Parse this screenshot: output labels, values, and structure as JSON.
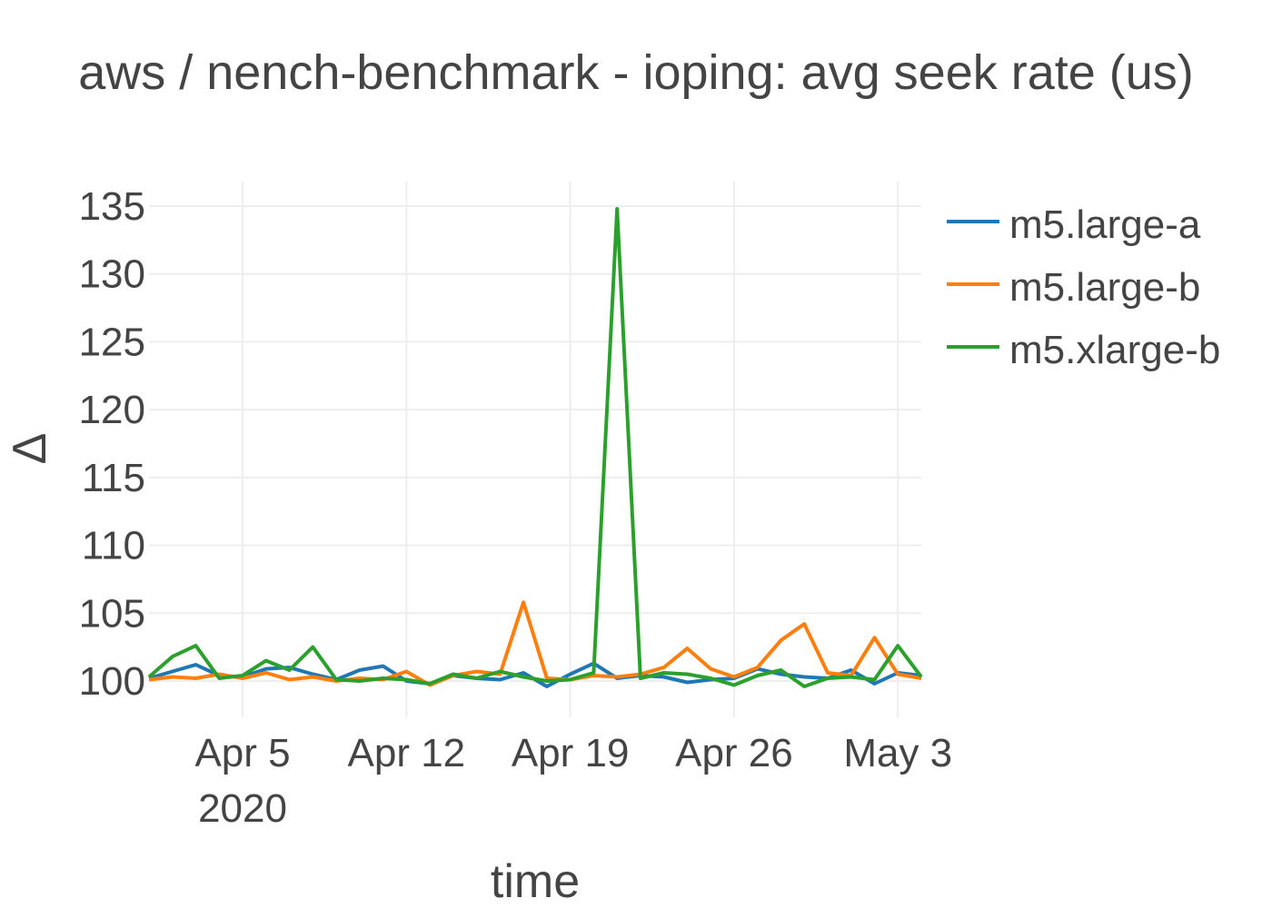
{
  "chart_data": {
    "type": "line",
    "title": "aws / nench-benchmark - ioping: avg seek rate (us)",
    "xlabel": "time",
    "ylabel": "Δ",
    "x_range": [
      "2020-04-01",
      "2020-05-04"
    ],
    "ylim": [
      97.5,
      137
    ],
    "y_ticks": [
      100,
      105,
      110,
      115,
      120,
      125,
      130,
      135
    ],
    "x_ticks": [
      {
        "date": "2020-04-05",
        "label": "Apr 5",
        "sublabel": "2020"
      },
      {
        "date": "2020-04-12",
        "label": "Apr 12",
        "sublabel": ""
      },
      {
        "date": "2020-04-19",
        "label": "Apr 19",
        "sublabel": ""
      },
      {
        "date": "2020-04-26",
        "label": "Apr 26",
        "sublabel": ""
      },
      {
        "date": "2020-05-03",
        "label": "May 3",
        "sublabel": ""
      }
    ],
    "grid": true,
    "legend_position": "top-right",
    "series": [
      {
        "name": "m5.large-a",
        "color": "#1f77b4",
        "points": [
          [
            "2020-04-01",
            100.2
          ],
          [
            "2020-04-02",
            100.7
          ],
          [
            "2020-04-03",
            101.2
          ],
          [
            "2020-04-04",
            100.4
          ],
          [
            "2020-04-05",
            100.3
          ],
          [
            "2020-04-06",
            100.9
          ],
          [
            "2020-04-07",
            101.0
          ],
          [
            "2020-04-08",
            100.5
          ],
          [
            "2020-04-09",
            100.1
          ],
          [
            "2020-04-10",
            100.8
          ],
          [
            "2020-04-11",
            101.1
          ],
          [
            "2020-04-12",
            100.0
          ],
          [
            "2020-04-13",
            99.8
          ],
          [
            "2020-04-14",
            100.4
          ],
          [
            "2020-04-15",
            100.2
          ],
          [
            "2020-04-16",
            100.1
          ],
          [
            "2020-04-17",
            100.6
          ],
          [
            "2020-04-18",
            99.6
          ],
          [
            "2020-04-19",
            100.5
          ],
          [
            "2020-04-20",
            101.3
          ],
          [
            "2020-04-21",
            100.2
          ],
          [
            "2020-04-22",
            100.4
          ],
          [
            "2020-04-23",
            100.3
          ],
          [
            "2020-04-24",
            99.9
          ],
          [
            "2020-04-25",
            100.1
          ],
          [
            "2020-04-26",
            100.2
          ],
          [
            "2020-04-27",
            100.9
          ],
          [
            "2020-04-28",
            100.5
          ],
          [
            "2020-04-29",
            100.3
          ],
          [
            "2020-04-30",
            100.2
          ],
          [
            "2020-05-01",
            100.8
          ],
          [
            "2020-05-02",
            99.8
          ],
          [
            "2020-05-03",
            100.6
          ],
          [
            "2020-05-04",
            100.4
          ]
        ]
      },
      {
        "name": "m5.large-b",
        "color": "#ff7f0e",
        "points": [
          [
            "2020-04-01",
            100.1
          ],
          [
            "2020-04-02",
            100.3
          ],
          [
            "2020-04-03",
            100.2
          ],
          [
            "2020-04-04",
            100.5
          ],
          [
            "2020-04-05",
            100.2
          ],
          [
            "2020-04-06",
            100.6
          ],
          [
            "2020-04-07",
            100.1
          ],
          [
            "2020-04-08",
            100.3
          ],
          [
            "2020-04-09",
            100.0
          ],
          [
            "2020-04-10",
            100.2
          ],
          [
            "2020-04-11",
            100.1
          ],
          [
            "2020-04-12",
            100.7
          ],
          [
            "2020-04-13",
            99.7
          ],
          [
            "2020-04-14",
            100.4
          ],
          [
            "2020-04-15",
            100.7
          ],
          [
            "2020-04-16",
            100.5
          ],
          [
            "2020-04-17",
            105.8
          ],
          [
            "2020-04-18",
            100.2
          ],
          [
            "2020-04-19",
            100.1
          ],
          [
            "2020-04-20",
            100.4
          ],
          [
            "2020-04-21",
            100.3
          ],
          [
            "2020-04-22",
            100.5
          ],
          [
            "2020-04-23",
            101.0
          ],
          [
            "2020-04-24",
            102.4
          ],
          [
            "2020-04-25",
            100.9
          ],
          [
            "2020-04-26",
            100.3
          ],
          [
            "2020-04-27",
            101.0
          ],
          [
            "2020-04-28",
            103.0
          ],
          [
            "2020-04-29",
            104.2
          ],
          [
            "2020-04-30",
            100.6
          ],
          [
            "2020-05-01",
            100.4
          ],
          [
            "2020-05-02",
            103.2
          ],
          [
            "2020-05-03",
            100.5
          ],
          [
            "2020-05-04",
            100.2
          ]
        ]
      },
      {
        "name": "m5.xlarge-b",
        "color": "#2ca02c",
        "points": [
          [
            "2020-04-01",
            100.3
          ],
          [
            "2020-04-02",
            101.8
          ],
          [
            "2020-04-03",
            102.6
          ],
          [
            "2020-04-04",
            100.2
          ],
          [
            "2020-04-05",
            100.4
          ],
          [
            "2020-04-06",
            101.5
          ],
          [
            "2020-04-07",
            100.8
          ],
          [
            "2020-04-08",
            102.5
          ],
          [
            "2020-04-09",
            100.1
          ],
          [
            "2020-04-10",
            100.0
          ],
          [
            "2020-04-11",
            100.2
          ],
          [
            "2020-04-12",
            100.1
          ],
          [
            "2020-04-13",
            99.8
          ],
          [
            "2020-04-14",
            100.5
          ],
          [
            "2020-04-15",
            100.2
          ],
          [
            "2020-04-16",
            100.7
          ],
          [
            "2020-04-17",
            100.3
          ],
          [
            "2020-04-18",
            100.0
          ],
          [
            "2020-04-19",
            100.1
          ],
          [
            "2020-04-20",
            100.6
          ],
          [
            "2020-04-21",
            134.8
          ],
          [
            "2020-04-22",
            100.2
          ],
          [
            "2020-04-23",
            100.6
          ],
          [
            "2020-04-24",
            100.5
          ],
          [
            "2020-04-25",
            100.2
          ],
          [
            "2020-04-26",
            99.7
          ],
          [
            "2020-04-27",
            100.4
          ],
          [
            "2020-04-28",
            100.8
          ],
          [
            "2020-04-29",
            99.6
          ],
          [
            "2020-04-30",
            100.2
          ],
          [
            "2020-05-01",
            100.3
          ],
          [
            "2020-05-02",
            100.1
          ],
          [
            "2020-05-03",
            102.6
          ],
          [
            "2020-05-04",
            100.3
          ]
        ]
      }
    ]
  }
}
